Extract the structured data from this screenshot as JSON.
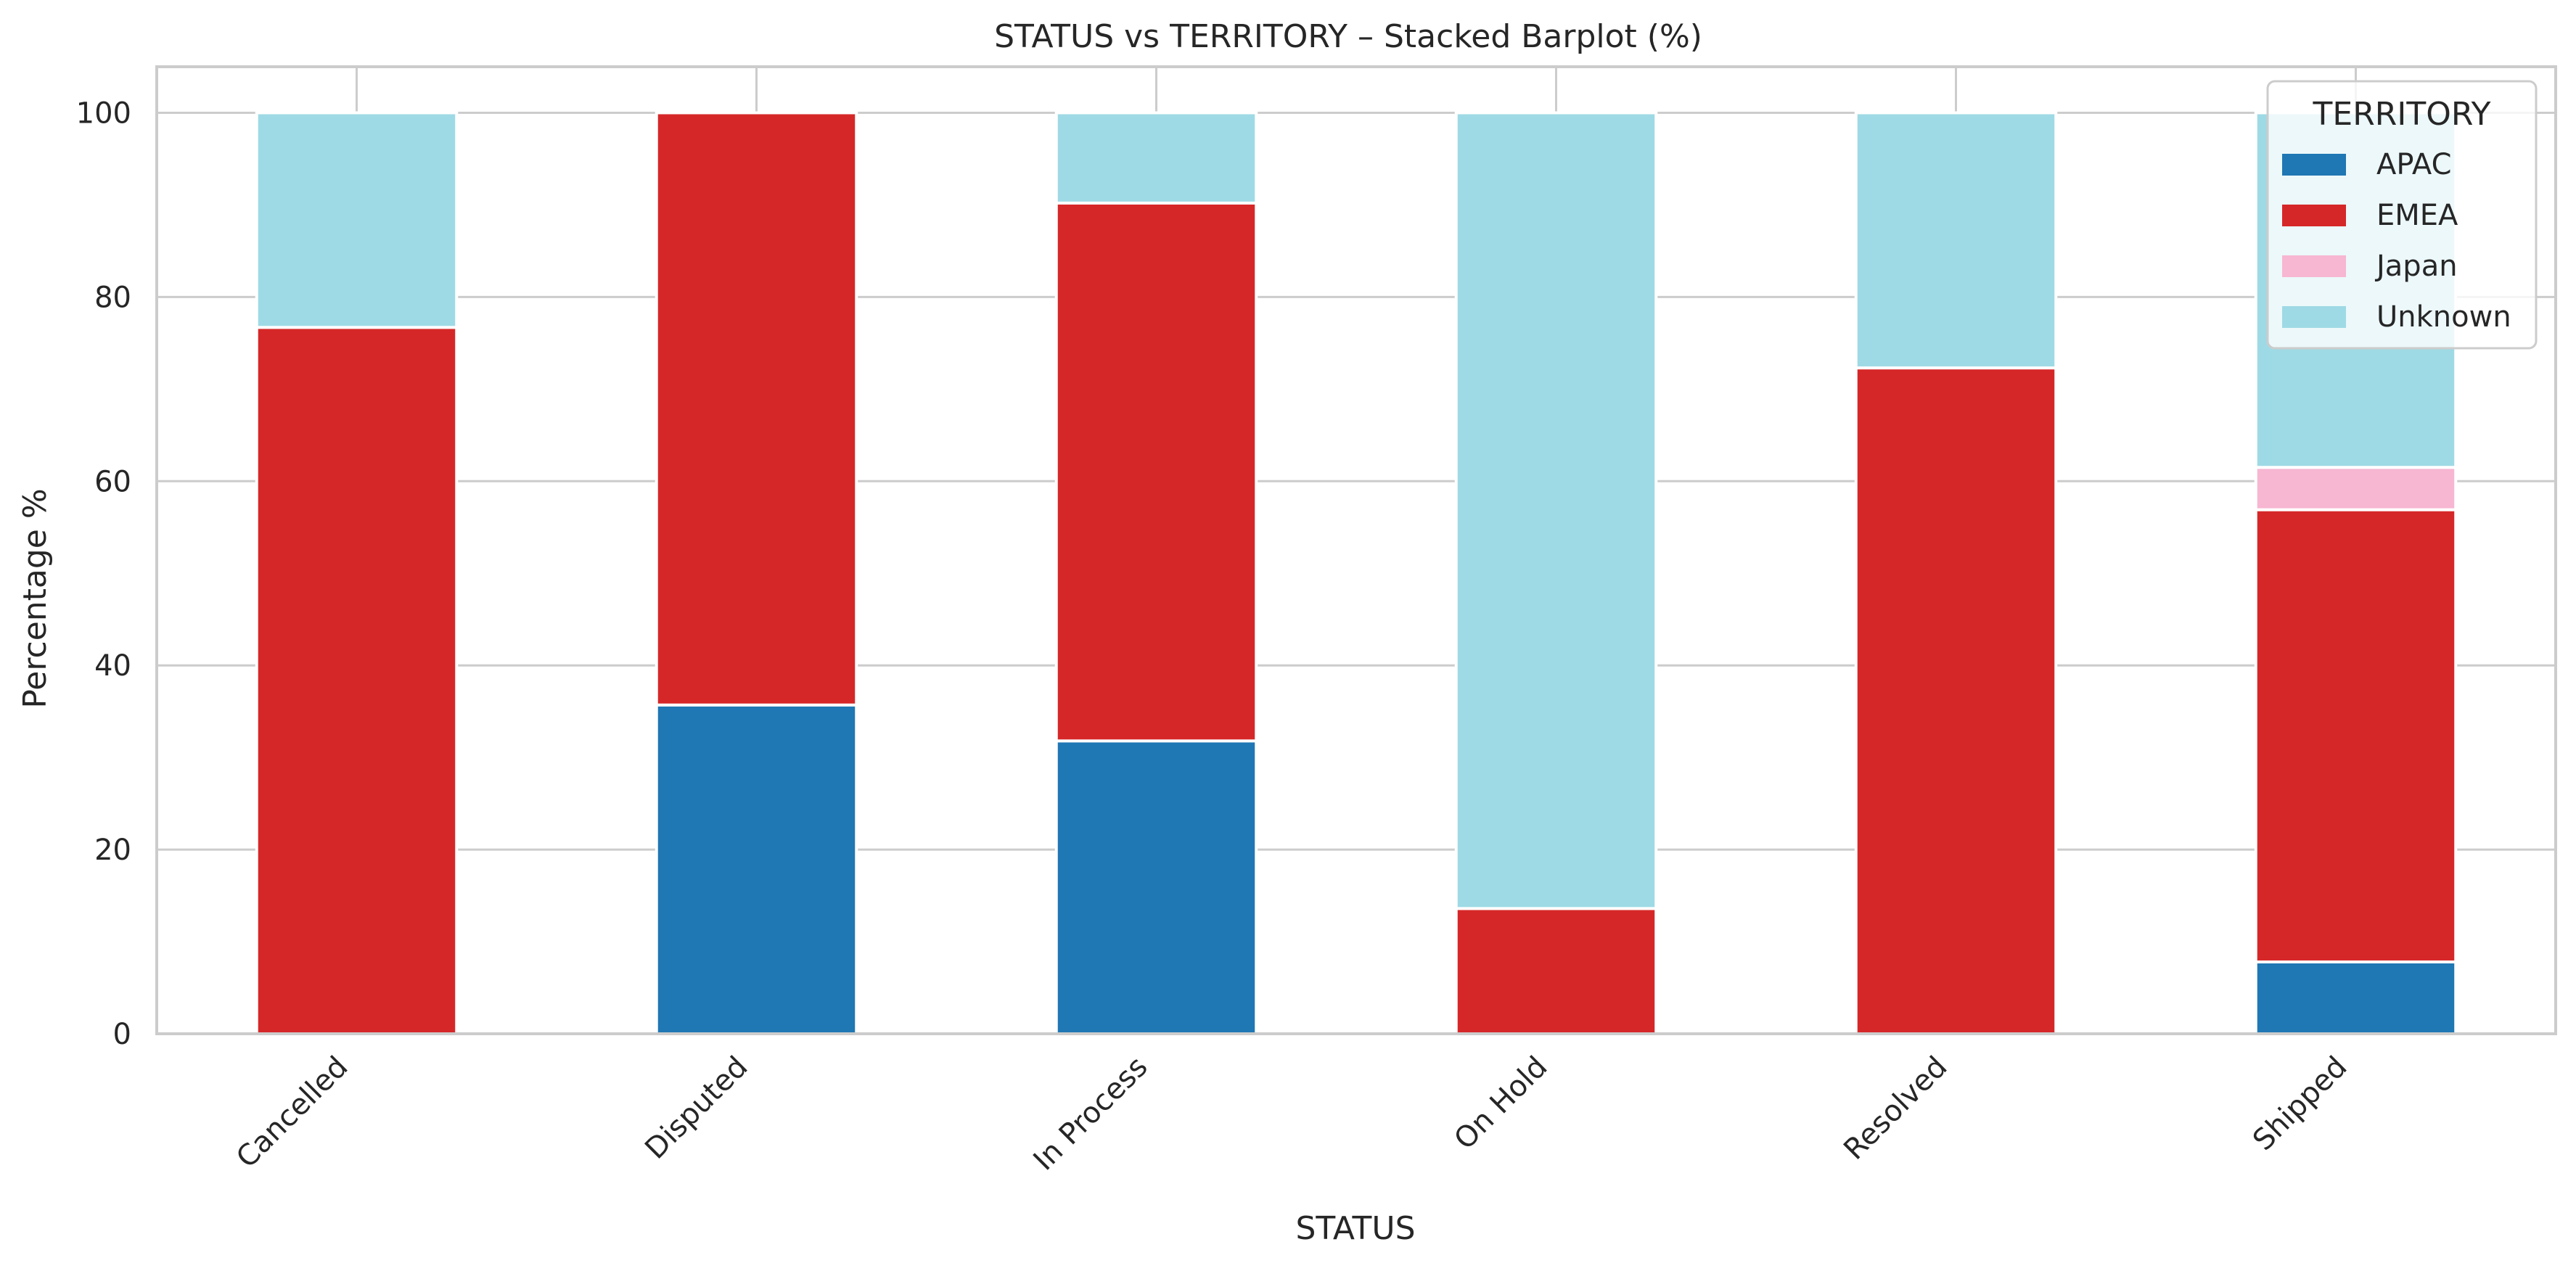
{
  "chart_data": {
    "type": "bar",
    "stacked": true,
    "title": "STATUS vs TERRITORY – Stacked Barplot (%)",
    "xlabel": "STATUS",
    "ylabel": "Percentage %",
    "ylim": [
      0,
      105
    ],
    "yticks": [
      "0",
      "20",
      "40",
      "60",
      "80",
      "100"
    ],
    "grid": true,
    "categories": [
      "Cancelled",
      "Disputed",
      "In Process",
      "On Hold",
      "Resolved",
      "Shipped"
    ],
    "series": [
      {
        "name": "APAC",
        "color": "#1f77b4",
        "values": [
          0,
          35.7,
          31.8,
          0,
          0,
          7.8
        ]
      },
      {
        "name": "EMEA",
        "color": "#d62728",
        "values": [
          76.7,
          64.3,
          58.4,
          13.6,
          72.3,
          49.1
        ]
      },
      {
        "name": "Japan",
        "color": "#f7b6d2",
        "values": [
          0,
          0,
          0,
          0,
          0,
          4.6
        ]
      },
      {
        "name": "Unknown",
        "color": "#9edae5",
        "values": [
          23.3,
          0,
          9.8,
          86.4,
          27.7,
          38.5
        ]
      }
    ],
    "legend": {
      "title": "TERRITORY",
      "position": "top-right"
    }
  }
}
